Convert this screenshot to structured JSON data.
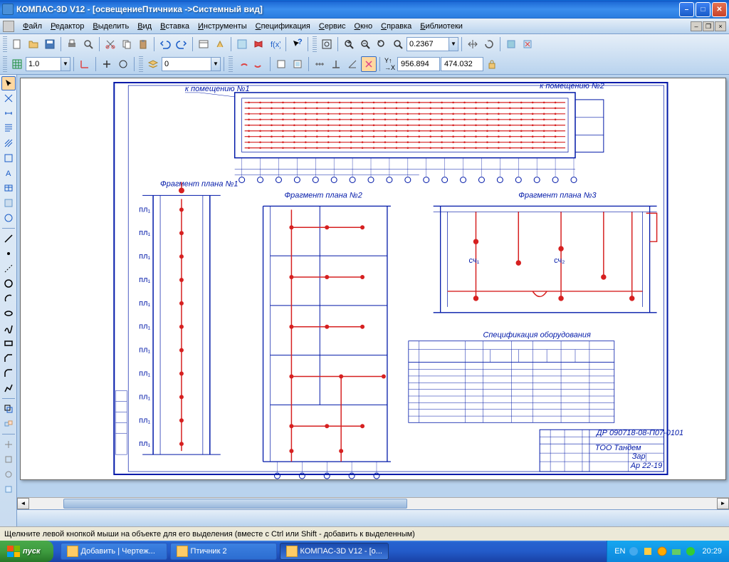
{
  "colors": {
    "titlebar_gradient": [
      "#0a6cce",
      "#3b8eed"
    ],
    "close_btn": "#c8422b",
    "menubar": "#b9d3ee",
    "accent": "#316ac5",
    "drawing_outline": "#0018a8",
    "drawing_lines": "#d62020",
    "canvas_bg": "#b9d3ee",
    "taskbar": "#235bc9",
    "start": "#3e9c3f",
    "tray": "#0d87dc"
  },
  "window": {
    "title": "КОМПАС-3D V12 - [освещениеПтичника ->Системный вид]"
  },
  "menubar": {
    "items": [
      {
        "label": "Файл",
        "u": 0
      },
      {
        "label": "Редактор",
        "u": 0
      },
      {
        "label": "Выделить",
        "u": 0
      },
      {
        "label": "Вид",
        "u": 0
      },
      {
        "label": "Вставка",
        "u": 0
      },
      {
        "label": "Инструменты",
        "u": 0
      },
      {
        "label": "Спецификация",
        "u": 0
      },
      {
        "label": "Сервис",
        "u": 0
      },
      {
        "label": "Окно",
        "u": 0
      },
      {
        "label": "Справка",
        "u": 0
      },
      {
        "label": "Библиотеки",
        "u": 0
      }
    ]
  },
  "toolbar1": {
    "zoom_value": "0.2367"
  },
  "toolbar2": {
    "step_value": "1.0",
    "layer_value": "0",
    "coord_x": "956.894",
    "coord_y": "474.032"
  },
  "drawing": {
    "fragment_labels": [
      "Фрагмент плана №1",
      "Фрагмент плана №2",
      "Фрагмент плана №3"
    ],
    "title_block": {
      "code": "ДР 090718-08-П07-0101",
      "project": "ТОО Тандем",
      "stage": "Зар",
      "sheet": "Ар 22-19"
    },
    "spec_table_title": "Спецификация оборудования"
  },
  "statusbar": {
    "hint": "Щелкните левой кнопкой мыши на объекте для его выделения (вместе с Ctrl или Shift - добавить к выделенным)"
  },
  "taskbar": {
    "start_label": "пуск",
    "items": [
      {
        "label": "Добавить | Чертеж...",
        "active": false
      },
      {
        "label": "Птичник 2",
        "active": false
      },
      {
        "label": "КОМПАС-3D V12 - [о...",
        "active": true
      }
    ],
    "lang": "EN",
    "clock": "20:29"
  }
}
